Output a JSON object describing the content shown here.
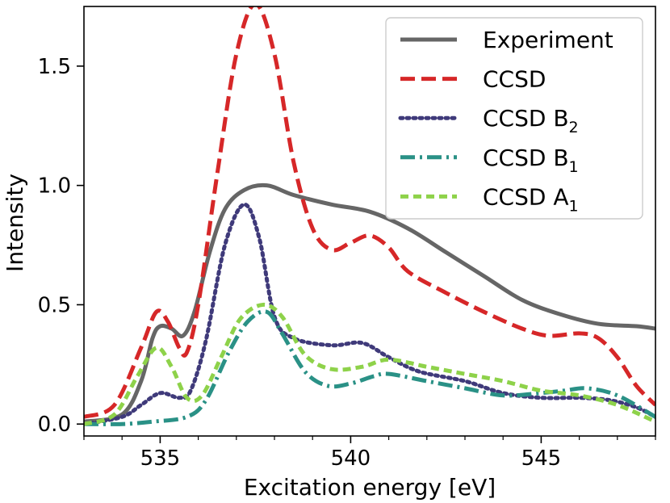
{
  "chart_data": {
    "type": "line",
    "title": "",
    "xlabel": "Excitation energy [eV]",
    "ylabel": "Intensity",
    "xlim": [
      533.0,
      548.0
    ],
    "ylim": [
      -0.05,
      1.75
    ],
    "x_ticks": [
      535,
      540,
      545
    ],
    "x_tick_labels": [
      "535",
      "540",
      "545"
    ],
    "y_ticks": [
      0.0,
      0.5,
      1.0,
      1.5
    ],
    "y_tick_labels": [
      "0.0",
      "0.5",
      "1.0",
      "1.5"
    ],
    "legend_position": "top-right",
    "series": [
      {
        "name": "Experiment",
        "label_main": "Experiment",
        "label_sub": "",
        "color": "#666666",
        "style": "solid",
        "points": [
          [
            533.0,
            0.01
          ],
          [
            534.0,
            0.04
          ],
          [
            534.5,
            0.18
          ],
          [
            534.8,
            0.36
          ],
          [
            535.0,
            0.41
          ],
          [
            535.3,
            0.4
          ],
          [
            535.6,
            0.37
          ],
          [
            535.9,
            0.47
          ],
          [
            536.3,
            0.72
          ],
          [
            536.7,
            0.9
          ],
          [
            537.2,
            0.98
          ],
          [
            537.8,
            1.0
          ],
          [
            538.5,
            0.96
          ],
          [
            539.5,
            0.92
          ],
          [
            540.5,
            0.89
          ],
          [
            541.5,
            0.82
          ],
          [
            542.5,
            0.72
          ],
          [
            543.5,
            0.62
          ],
          [
            544.5,
            0.52
          ],
          [
            545.5,
            0.46
          ],
          [
            546.5,
            0.42
          ],
          [
            547.5,
            0.41
          ],
          [
            548.0,
            0.4
          ]
        ]
      },
      {
        "name": "CCSD",
        "label_main": "CCSD",
        "label_sub": "",
        "color": "#d62728",
        "style": "dash",
        "points": [
          [
            533.0,
            0.03
          ],
          [
            533.8,
            0.08
          ],
          [
            534.5,
            0.32
          ],
          [
            534.9,
            0.47
          ],
          [
            535.2,
            0.43
          ],
          [
            535.5,
            0.32
          ],
          [
            535.7,
            0.3
          ],
          [
            536.0,
            0.5
          ],
          [
            536.5,
            1.05
          ],
          [
            537.0,
            1.55
          ],
          [
            537.5,
            1.76
          ],
          [
            538.0,
            1.55
          ],
          [
            538.5,
            1.1
          ],
          [
            539.0,
            0.82
          ],
          [
            539.5,
            0.73
          ],
          [
            540.0,
            0.76
          ],
          [
            540.5,
            0.79
          ],
          [
            541.0,
            0.74
          ],
          [
            541.5,
            0.64
          ],
          [
            542.5,
            0.55
          ],
          [
            543.5,
            0.47
          ],
          [
            544.5,
            0.4
          ],
          [
            545.2,
            0.37
          ],
          [
            546.0,
            0.38
          ],
          [
            546.5,
            0.36
          ],
          [
            547.0,
            0.28
          ],
          [
            547.5,
            0.16
          ],
          [
            548.0,
            0.08
          ]
        ]
      },
      {
        "name": "CCSD B2",
        "label_main": "CCSD B",
        "label_sub": "2",
        "color": "#3f3a7a",
        "style": "dot",
        "points": [
          [
            533.0,
            0.0
          ],
          [
            534.0,
            0.03
          ],
          [
            534.5,
            0.08
          ],
          [
            535.0,
            0.13
          ],
          [
            535.5,
            0.11
          ],
          [
            535.8,
            0.14
          ],
          [
            536.2,
            0.35
          ],
          [
            536.7,
            0.75
          ],
          [
            537.2,
            0.92
          ],
          [
            537.6,
            0.78
          ],
          [
            538.0,
            0.45
          ],
          [
            538.5,
            0.36
          ],
          [
            539.5,
            0.33
          ],
          [
            540.3,
            0.34
          ],
          [
            541.0,
            0.28
          ],
          [
            541.8,
            0.22
          ],
          [
            543.0,
            0.18
          ],
          [
            544.0,
            0.13
          ],
          [
            545.0,
            0.11
          ],
          [
            546.0,
            0.11
          ],
          [
            546.8,
            0.1
          ],
          [
            547.5,
            0.07
          ],
          [
            548.0,
            0.03
          ]
        ]
      },
      {
        "name": "CCSD B1",
        "label_main": "CCSD B",
        "label_sub": "1",
        "color": "#2a9186",
        "style": "dashdot",
        "points": [
          [
            533.0,
            0.0
          ],
          [
            534.0,
            0.0
          ],
          [
            534.8,
            0.01
          ],
          [
            535.7,
            0.03
          ],
          [
            536.2,
            0.1
          ],
          [
            536.8,
            0.3
          ],
          [
            537.3,
            0.43
          ],
          [
            537.8,
            0.47
          ],
          [
            538.2,
            0.38
          ],
          [
            538.8,
            0.22
          ],
          [
            539.4,
            0.16
          ],
          [
            540.0,
            0.17
          ],
          [
            540.6,
            0.2
          ],
          [
            541.0,
            0.21
          ],
          [
            542.0,
            0.18
          ],
          [
            543.0,
            0.15
          ],
          [
            544.0,
            0.12
          ],
          [
            545.0,
            0.13
          ],
          [
            545.6,
            0.14
          ],
          [
            546.2,
            0.15
          ],
          [
            547.0,
            0.12
          ],
          [
            548.0,
            0.03
          ]
        ]
      },
      {
        "name": "CCSD A1",
        "label_main": "CCSD A",
        "label_sub": "1",
        "color": "#8ed24a",
        "style": "dash-fine",
        "points": [
          [
            533.0,
            0.0
          ],
          [
            533.8,
            0.04
          ],
          [
            534.4,
            0.2
          ],
          [
            534.9,
            0.32
          ],
          [
            535.3,
            0.24
          ],
          [
            535.7,
            0.11
          ],
          [
            536.1,
            0.12
          ],
          [
            536.6,
            0.28
          ],
          [
            537.1,
            0.44
          ],
          [
            537.7,
            0.5
          ],
          [
            538.2,
            0.45
          ],
          [
            538.8,
            0.29
          ],
          [
            539.5,
            0.23
          ],
          [
            540.3,
            0.24
          ],
          [
            541.0,
            0.27
          ],
          [
            542.0,
            0.24
          ],
          [
            543.0,
            0.21
          ],
          [
            544.0,
            0.18
          ],
          [
            545.0,
            0.14
          ],
          [
            546.0,
            0.12
          ],
          [
            547.0,
            0.08
          ],
          [
            548.0,
            0.01
          ]
        ]
      }
    ]
  }
}
